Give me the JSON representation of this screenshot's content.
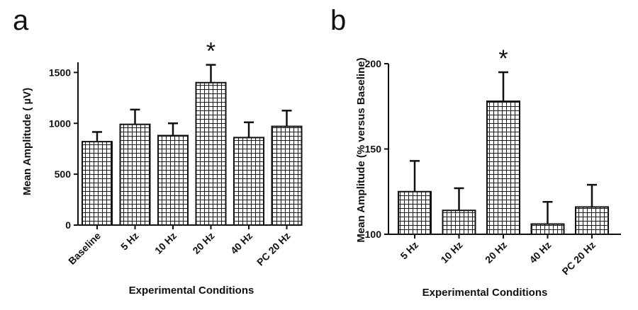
{
  "chart_data": [
    {
      "panel": "a",
      "type": "bar",
      "categories": [
        "Baseline",
        "5 Hz",
        "10 Hz",
        "20 Hz",
        "40 Hz",
        "PC 20 Hz"
      ],
      "values": [
        820,
        990,
        880,
        1400,
        860,
        970
      ],
      "errors": [
        95,
        145,
        120,
        175,
        150,
        155
      ],
      "ylim": [
        0,
        1600
      ],
      "yticks": [
        0,
        500,
        1000,
        1500
      ],
      "xlabel": "Experimental Conditions",
      "ylabel": "Mean Amplitude ( µV)",
      "annotation": {
        "text": "*",
        "category": "20 Hz"
      },
      "pattern": "grid-hatch"
    },
    {
      "panel": "b",
      "type": "bar",
      "categories": [
        "5 Hz",
        "10 Hz",
        "20 Hz",
        "40 Hz",
        "PC 20 Hz"
      ],
      "values": [
        125,
        114,
        178,
        106,
        116
      ],
      "errors": [
        18,
        13,
        17,
        13,
        13
      ],
      "ylim": [
        100,
        200
      ],
      "yticks": [
        100,
        150,
        200
      ],
      "xlabel": "Experimental Conditions",
      "ylabel": "Mean Amplitude (% versus  Baseline)",
      "annotation": {
        "text": "*",
        "category": "20 Hz"
      },
      "pattern": "grid-hatch"
    }
  ]
}
